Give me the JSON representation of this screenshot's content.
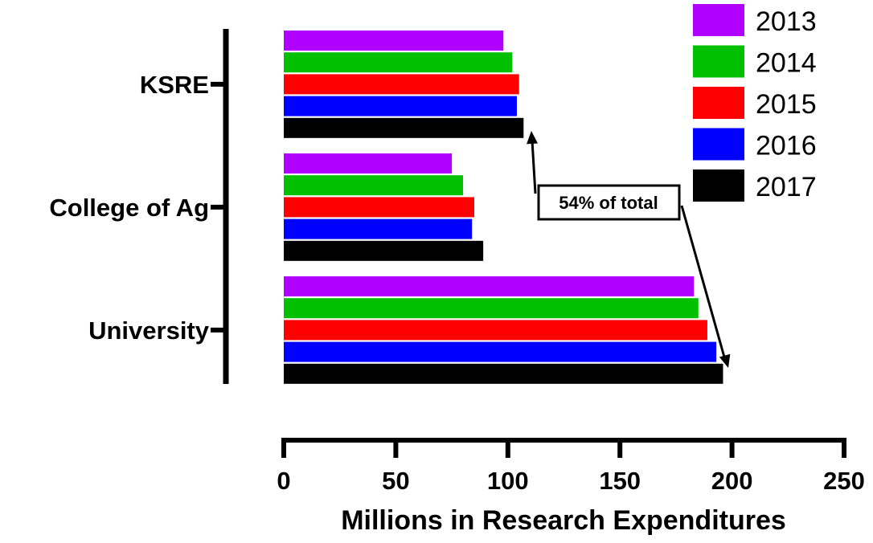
{
  "chart_data": {
    "type": "bar",
    "orientation": "horizontal",
    "categories": [
      "KSRE",
      "College of Ag",
      "University"
    ],
    "series": [
      {
        "name": "2013",
        "color": "#B000FF",
        "values": [
          98,
          75,
          183
        ]
      },
      {
        "name": "2014",
        "color": "#00C000",
        "values": [
          102,
          80,
          185
        ]
      },
      {
        "name": "2015",
        "color": "#FF0000",
        "values": [
          105,
          85,
          189
        ]
      },
      {
        "name": "2016",
        "color": "#0000FF",
        "values": [
          104,
          84,
          193
        ]
      },
      {
        "name": "2017",
        "color": "#000000",
        "values": [
          107,
          89,
          196
        ]
      }
    ],
    "xlabel": "Millions in Research Expenditures",
    "xlim": [
      0,
      250
    ],
    "xticks": [
      "0",
      "50",
      "100",
      "150",
      "200",
      "250"
    ],
    "grid": false,
    "legend_position": "top-right",
    "annotation": {
      "text": "54% of total",
      "from_category": "KSRE",
      "to_category": "University"
    }
  }
}
